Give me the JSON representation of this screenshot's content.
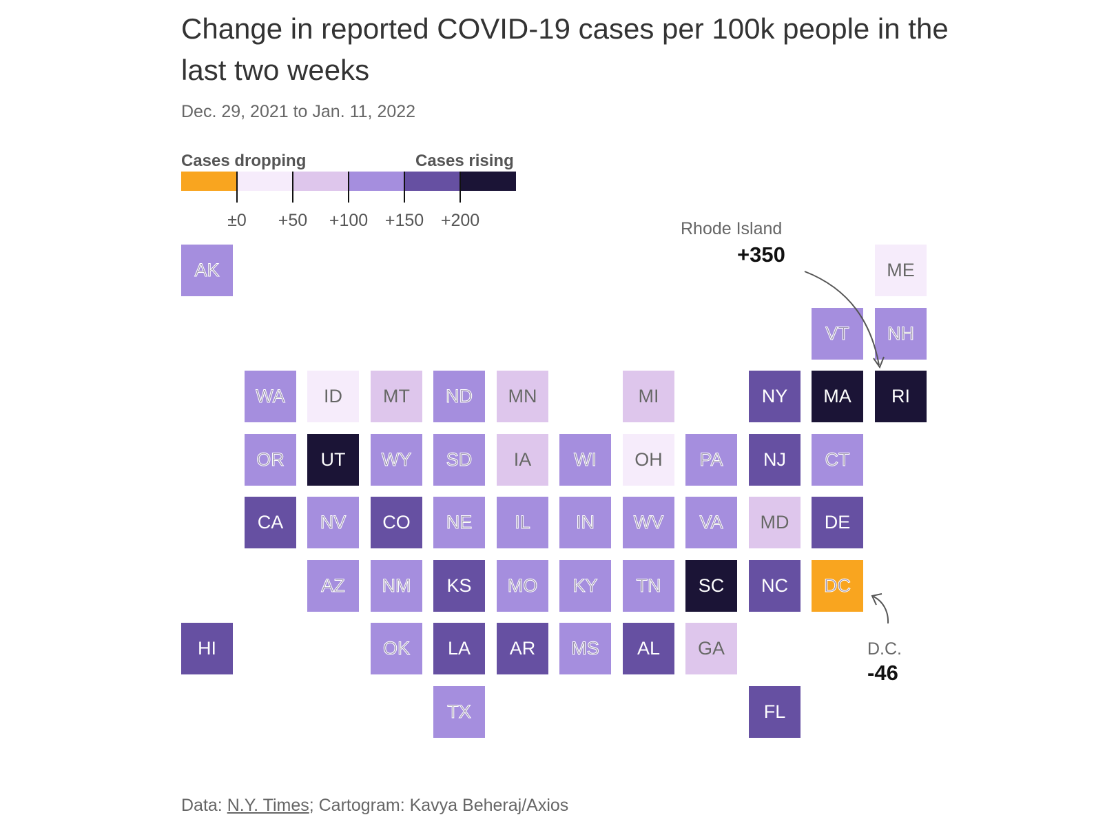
{
  "title": "Change in reported COVID-19 cases per 100k people in the last two weeks",
  "subtitle": "Dec. 29, 2021 to Jan. 11, 2022",
  "legend": {
    "left_label": "Cases dropping",
    "right_label": "Cases rising",
    "colors": [
      "#f9a51f",
      "#f6ecfb",
      "#dec6ec",
      "#a58ede",
      "#6650a2",
      "#1b1436"
    ],
    "ticks": [
      "±0",
      "+50",
      "+100",
      "+150",
      "+200"
    ]
  },
  "annotations": {
    "ri": {
      "name": "Rhode Island",
      "value": "+350"
    },
    "dc": {
      "name": "D.C.",
      "value": "-46"
    }
  },
  "footer": {
    "prefix": "Data: ",
    "link": "N.Y. Times",
    "suffix": "; Cartogram: Kavya Beheraj/Axios"
  },
  "chart_data": {
    "type": "tile-cartogram",
    "bins": [
      "below 0",
      "0 to 50",
      "50 to 100",
      "100 to 150",
      "150 to 200",
      "200+"
    ],
    "states": [
      {
        "abbr": "AK",
        "bin": 3,
        "row": 0,
        "col": 0
      },
      {
        "abbr": "ME",
        "bin": 1,
        "row": 0,
        "col": 11
      },
      {
        "abbr": "VT",
        "bin": 3,
        "row": 1,
        "col": 10
      },
      {
        "abbr": "NH",
        "bin": 3,
        "row": 1,
        "col": 11
      },
      {
        "abbr": "WA",
        "bin": 3,
        "row": 2,
        "col": 1
      },
      {
        "abbr": "ID",
        "bin": 1,
        "row": 2,
        "col": 2
      },
      {
        "abbr": "MT",
        "bin": 2,
        "row": 2,
        "col": 3
      },
      {
        "abbr": "ND",
        "bin": 3,
        "row": 2,
        "col": 4
      },
      {
        "abbr": "MN",
        "bin": 2,
        "row": 2,
        "col": 5
      },
      {
        "abbr": "MI",
        "bin": 2,
        "row": 2,
        "col": 7
      },
      {
        "abbr": "NY",
        "bin": 4,
        "row": 2,
        "col": 9
      },
      {
        "abbr": "MA",
        "bin": 5,
        "row": 2,
        "col": 10
      },
      {
        "abbr": "RI",
        "bin": 5,
        "row": 2,
        "col": 11
      },
      {
        "abbr": "OR",
        "bin": 3,
        "row": 3,
        "col": 1
      },
      {
        "abbr": "UT",
        "bin": 5,
        "row": 3,
        "col": 2
      },
      {
        "abbr": "WY",
        "bin": 3,
        "row": 3,
        "col": 3
      },
      {
        "abbr": "SD",
        "bin": 3,
        "row": 3,
        "col": 4
      },
      {
        "abbr": "IA",
        "bin": 2,
        "row": 3,
        "col": 5
      },
      {
        "abbr": "WI",
        "bin": 3,
        "row": 3,
        "col": 6
      },
      {
        "abbr": "OH",
        "bin": 1,
        "row": 3,
        "col": 7
      },
      {
        "abbr": "PA",
        "bin": 3,
        "row": 3,
        "col": 8
      },
      {
        "abbr": "NJ",
        "bin": 4,
        "row": 3,
        "col": 9
      },
      {
        "abbr": "CT",
        "bin": 3,
        "row": 3,
        "col": 10
      },
      {
        "abbr": "CA",
        "bin": 4,
        "row": 4,
        "col": 1
      },
      {
        "abbr": "NV",
        "bin": 3,
        "row": 4,
        "col": 2
      },
      {
        "abbr": "CO",
        "bin": 4,
        "row": 4,
        "col": 3
      },
      {
        "abbr": "NE",
        "bin": 3,
        "row": 4,
        "col": 4
      },
      {
        "abbr": "IL",
        "bin": 3,
        "row": 4,
        "col": 5
      },
      {
        "abbr": "IN",
        "bin": 3,
        "row": 4,
        "col": 6
      },
      {
        "abbr": "WV",
        "bin": 3,
        "row": 4,
        "col": 7
      },
      {
        "abbr": "VA",
        "bin": 3,
        "row": 4,
        "col": 8
      },
      {
        "abbr": "MD",
        "bin": 2,
        "row": 4,
        "col": 9
      },
      {
        "abbr": "DE",
        "bin": 4,
        "row": 4,
        "col": 10
      },
      {
        "abbr": "AZ",
        "bin": 3,
        "row": 5,
        "col": 2
      },
      {
        "abbr": "NM",
        "bin": 3,
        "row": 5,
        "col": 3
      },
      {
        "abbr": "KS",
        "bin": 4,
        "row": 5,
        "col": 4
      },
      {
        "abbr": "MO",
        "bin": 3,
        "row": 5,
        "col": 5
      },
      {
        "abbr": "KY",
        "bin": 3,
        "row": 5,
        "col": 6
      },
      {
        "abbr": "TN",
        "bin": 3,
        "row": 5,
        "col": 7
      },
      {
        "abbr": "SC",
        "bin": 5,
        "row": 5,
        "col": 8
      },
      {
        "abbr": "NC",
        "bin": 4,
        "row": 5,
        "col": 9
      },
      {
        "abbr": "DC",
        "bin": 0,
        "row": 5,
        "col": 10
      },
      {
        "abbr": "HI",
        "bin": 4,
        "row": 6,
        "col": 0
      },
      {
        "abbr": "OK",
        "bin": 3,
        "row": 6,
        "col": 3
      },
      {
        "abbr": "LA",
        "bin": 4,
        "row": 6,
        "col": 4
      },
      {
        "abbr": "AR",
        "bin": 4,
        "row": 6,
        "col": 5
      },
      {
        "abbr": "MS",
        "bin": 3,
        "row": 6,
        "col": 6
      },
      {
        "abbr": "AL",
        "bin": 4,
        "row": 6,
        "col": 7
      },
      {
        "abbr": "GA",
        "bin": 2,
        "row": 6,
        "col": 8
      },
      {
        "abbr": "TX",
        "bin": 3,
        "row": 7,
        "col": 4
      },
      {
        "abbr": "FL",
        "bin": 4,
        "row": 7,
        "col": 9
      }
    ]
  }
}
